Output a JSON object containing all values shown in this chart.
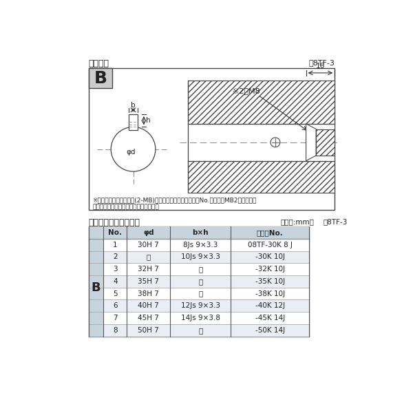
{
  "title_top": "軸穴形状",
  "title_top_right": "図8TF-3",
  "title_bottom": "軸穴形状コード一覧表",
  "title_bottom_right1": "（単位:mm）",
  "title_bottom_right2": "表8TF-3",
  "label_B": "B",
  "diagram_note1": "※セットボルト用タップ(2-MB)が必要な場合は右記コードNo.の末尾にMB2を付ける。",
  "diagram_note2": "（セットボルトは付属されています。）",
  "dim_label_b": "b",
  "dim_label_h": "h",
  "dim_label_phid": "φd",
  "dim_label_m8": "※2－M8",
  "dim_label_16": "16",
  "table_headers": [
    "No.",
    "φd",
    "b×h",
    "コードNo."
  ],
  "table_rows": [
    [
      "1",
      "30H 7",
      "8Js 9×3.3",
      "08TF-30K 8 J"
    ],
    [
      "2",
      "〃",
      "10Js 9×3.3",
      "-30K 10J"
    ],
    [
      "3",
      "32H 7",
      "〃",
      "-32K 10J"
    ],
    [
      "4",
      "35H 7",
      "〃",
      "-35K 10J"
    ],
    [
      "5",
      "38H 7",
      "〃",
      "-38K 10J"
    ],
    [
      "6",
      "40H 7",
      "12Js 9×3.3",
      "-40K 12J"
    ],
    [
      "7",
      "45H 7",
      "14Js 9×3.8",
      "-45K 14J"
    ],
    [
      "8",
      "50H 7",
      "〃",
      "-50K 14J"
    ]
  ],
  "row_B_label": "B",
  "header_bg": "#c8d4dc",
  "b_col_bg": "#c8d4dc",
  "row_odd_bg": "#e8eef4",
  "row_even_bg": "#ffffff",
  "border_color": "#888888",
  "text_color": "#222222",
  "white": "#ffffff"
}
